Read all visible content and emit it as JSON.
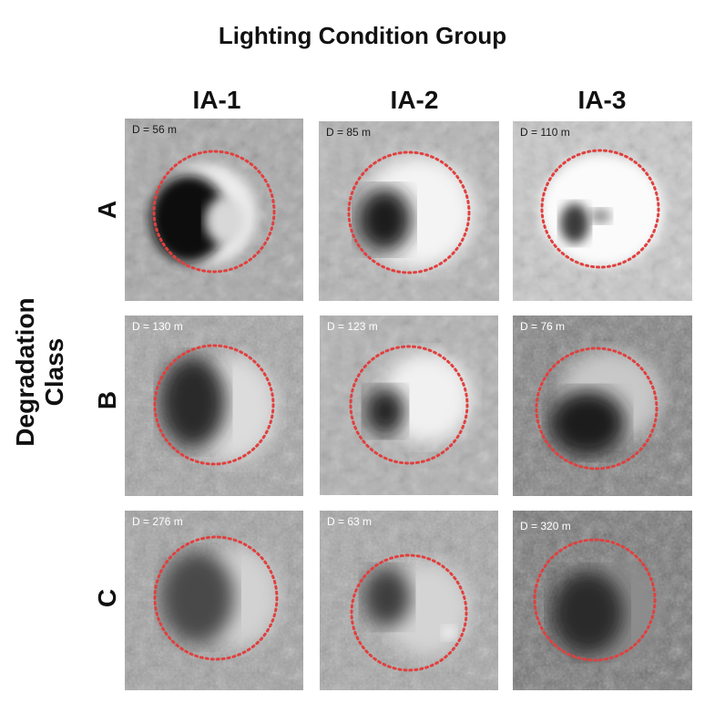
{
  "figure": {
    "title": "Lighting Condition Group",
    "y_axis_title": "Degradation Class",
    "columns": [
      "IA-1",
      "IA-2",
      "IA-3"
    ],
    "rows": [
      "A",
      "B",
      "C"
    ],
    "circle_color": "#e0403e",
    "tiles": [
      {
        "row": "A",
        "column": "IA-1",
        "diameter_label": "D = 56 m",
        "label_color": "light"
      },
      {
        "row": "A",
        "column": "IA-2",
        "diameter_label": "D = 85 m",
        "label_color": "dark"
      },
      {
        "row": "A",
        "column": "IA-3",
        "diameter_label": "D = 110 m",
        "label_color": "dark"
      },
      {
        "row": "B",
        "column": "IA-1",
        "diameter_label": "D = 130 m",
        "label_color": "light"
      },
      {
        "row": "B",
        "column": "IA-2",
        "diameter_label": "D = 123 m",
        "label_color": "light"
      },
      {
        "row": "B",
        "column": "IA-3",
        "diameter_label": "D = 76 m",
        "label_color": "light"
      },
      {
        "row": "C",
        "column": "IA-1",
        "diameter_label": "D = 276 m",
        "label_color": "light"
      },
      {
        "row": "C",
        "column": "IA-2",
        "diameter_label": "D = 63 m",
        "label_color": "light"
      },
      {
        "row": "C",
        "column": "IA-3",
        "diameter_label": "D = 320 m",
        "label_color": "light"
      }
    ]
  }
}
